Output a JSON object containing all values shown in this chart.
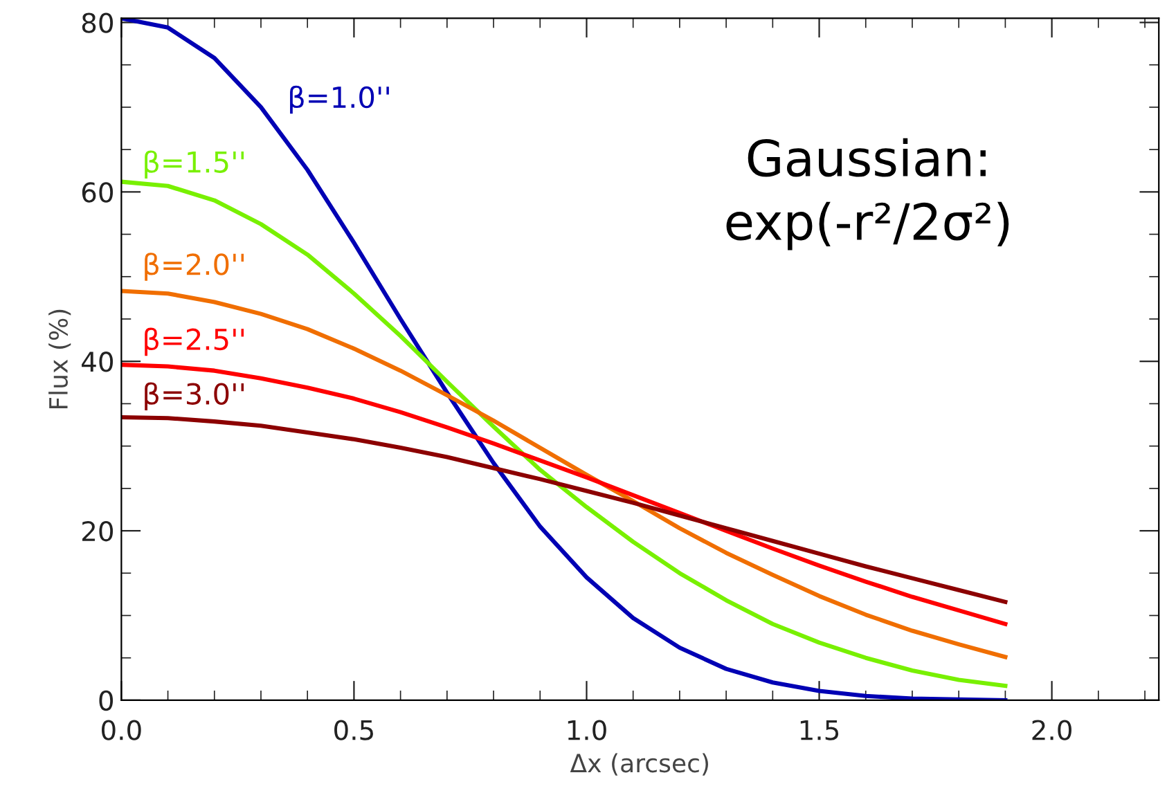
{
  "chart_data": {
    "type": "line",
    "xlabel": "Δx (arcsec)",
    "ylabel": "Flux (%)",
    "annotations": [
      "Gaussian:\nexp(-r²/2σ²)"
    ],
    "x": [
      0.0,
      0.1,
      0.2,
      0.3,
      0.4,
      0.5,
      0.6,
      0.7,
      0.8,
      0.9,
      1.0,
      1.1,
      1.2,
      1.3,
      1.4,
      1.5,
      1.6,
      1.7,
      1.8,
      1.9
    ],
    "series": [
      {
        "name": "β=1.0''",
        "color": "#0000b4",
        "values": [
          80.5,
          79.4,
          75.8,
          70,
          62.6,
          54,
          45,
          36.3,
          28,
          20.5,
          14.5,
          9.7,
          6.2,
          3.7,
          2.1,
          1.1,
          0.5,
          0.2,
          0.1,
          0.0
        ]
      },
      {
        "name": "β=1.5''",
        "color": "#78f000",
        "values": [
          61.2,
          60.7,
          59,
          56.2,
          52.6,
          48,
          43,
          37.6,
          32.3,
          27.2,
          22.8,
          18.7,
          15,
          11.8,
          9,
          6.8,
          5,
          3.5,
          2.4,
          1.7
        ]
      },
      {
        "name": "β=2.0''",
        "color": "#f06e00",
        "values": [
          48.3,
          48,
          47,
          45.6,
          43.8,
          41.5,
          38.9,
          36,
          33,
          29.8,
          26.6,
          23.5,
          20.3,
          17.4,
          14.8,
          12.3,
          10.1,
          8.2,
          6.6,
          5.1
        ]
      },
      {
        "name": "β=2.5''",
        "color": "#ff0000",
        "values": [
          39.6,
          39.4,
          38.9,
          38,
          36.9,
          35.6,
          34,
          32.2,
          30.3,
          28.3,
          26.3,
          24.2,
          22.1,
          20,
          17.9,
          15.9,
          14,
          12.2,
          10.6,
          9.0
        ]
      },
      {
        "name": "β=3.0''",
        "color": "#8c0000",
        "values": [
          33.4,
          33.3,
          32.9,
          32.4,
          31.6,
          30.8,
          29.8,
          28.7,
          27.4,
          26.1,
          24.7,
          23.3,
          21.8,
          20.3,
          18.8,
          17.3,
          15.8,
          14.4,
          13,
          11.6
        ]
      }
    ],
    "xlim": [
      0,
      2.23
    ],
    "ylim": [
      0,
      80.5
    ],
    "xticks": [
      {
        "value": 0,
        "label": "0.0"
      },
      {
        "value": 0.5,
        "label": "0.5"
      },
      {
        "value": 1,
        "label": "1.0"
      },
      {
        "value": 1.5,
        "label": "1.5"
      },
      {
        "value": 2,
        "label": "2.0"
      }
    ],
    "yticks": [
      0,
      20,
      40,
      60,
      80
    ],
    "grid": false,
    "legend": false,
    "marker": "none",
    "line_style": "solid"
  }
}
